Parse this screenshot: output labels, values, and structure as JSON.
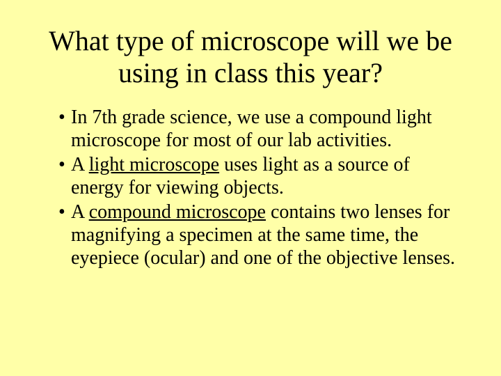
{
  "slide": {
    "background_color": "#ffffa8",
    "text_color": "#000000",
    "font_family": "Times New Roman",
    "title": {
      "text": "What type of microscope will we be using in class this year?",
      "font_size_pt": 40,
      "align": "center",
      "weight": "normal"
    },
    "body": {
      "font_size_pt": 28,
      "bullets": [
        {
          "pre": "In 7th grade science, we use a compound light microscope for most of our lab activities.",
          "u": "",
          "post": ""
        },
        {
          "pre": "A ",
          "u": "light microscope",
          "post": " uses light as a source of energy for viewing objects."
        },
        {
          "pre": "A ",
          "u": "compound microscope",
          "post": " contains two lenses for magnifying a specimen at the same time, the eyepiece (ocular) and one of the objective lenses."
        }
      ]
    }
  }
}
